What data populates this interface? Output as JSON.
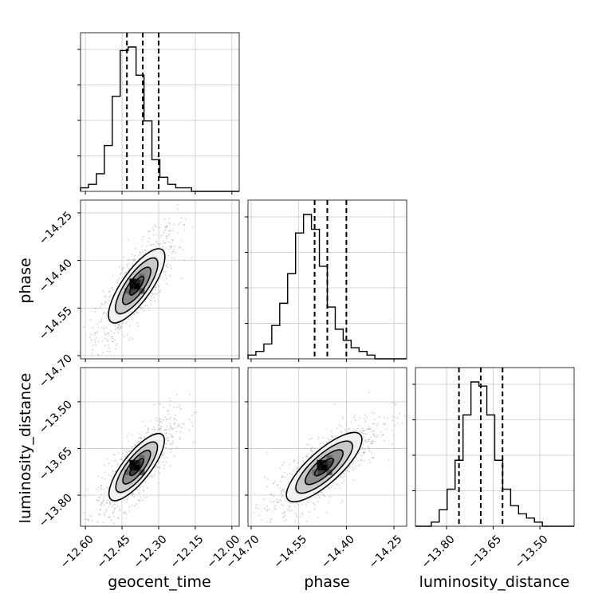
{
  "chart_data": {
    "type": "corner",
    "parameters": [
      "geocent_time",
      "phase",
      "luminosity_distance"
    ],
    "axis_labels": {
      "geocent_time": "geocent_time",
      "phase": "phase",
      "luminosity_distance": "luminosity_distance"
    },
    "ranges": {
      "geocent_time": [
        -12.62,
        -11.97
      ],
      "phase": [
        -14.71,
        -14.21
      ],
      "luminosity_distance": [
        -13.9,
        -13.39
      ]
    },
    "ticks": {
      "geocent_time": [
        -12.6,
        -12.45,
        -12.3,
        -12.15,
        -12.0
      ],
      "phase": [
        -14.7,
        -14.55,
        -14.4,
        -14.25
      ],
      "luminosity_distance": [
        -13.8,
        -13.65,
        -13.5
      ]
    },
    "tick_labels": {
      "geocent_time": [
        "−12.60",
        "−12.45",
        "−12.30",
        "−12.15",
        "−12.00"
      ],
      "phase": [
        "−14.70",
        "−14.55",
        "−14.40",
        "−14.25"
      ],
      "luminosity_distance": [
        "−13.80",
        "−13.65",
        "−13.50"
      ]
    },
    "quantiles": {
      "geocent_time": [
        -12.43,
        -12.365,
        -12.3
      ],
      "phase": [
        -14.5,
        -14.46,
        -14.4
      ],
      "luminosity_distance": [
        -13.76,
        -13.69,
        -13.62
      ]
    },
    "histograms": {
      "geocent_time": [
        1,
        2,
        5,
        13,
        27,
        40,
        41,
        33,
        20,
        9,
        4,
        2,
        1,
        1,
        0,
        0,
        0,
        0,
        0,
        0
      ],
      "phase": [
        1,
        2,
        4,
        9,
        15,
        23,
        34,
        39,
        35,
        25,
        14,
        8,
        5,
        3,
        2,
        1,
        0,
        0,
        0,
        0
      ],
      "luminosity_distance": [
        0,
        0,
        1,
        4,
        9,
        16,
        27,
        35,
        34,
        27,
        16,
        9,
        5,
        3,
        2,
        1,
        0,
        0,
        0,
        0
      ]
    },
    "scatter_2d": [
      {
        "x": "geocent_time",
        "y": "phase",
        "center": [
          -12.39,
          -14.48
        ],
        "sx": 0.055,
        "sy": 0.06,
        "rho": 0.8
      },
      {
        "x": "geocent_time",
        "y": "luminosity_distance",
        "center": [
          -12.39,
          -13.71
        ],
        "sx": 0.055,
        "sy": 0.055,
        "rho": 0.8
      },
      {
        "x": "phase",
        "y": "luminosity_distance",
        "center": [
          -14.47,
          -13.71
        ],
        "sx": 0.06,
        "sy": 0.055,
        "rho": 0.8
      }
    ],
    "contour_levels": [
      0.5,
      1.0,
      1.5,
      2.0
    ],
    "grid": true,
    "line_color": "#000000",
    "point_color": "#9a9a9a",
    "grid_color": "#c8c8c8"
  }
}
